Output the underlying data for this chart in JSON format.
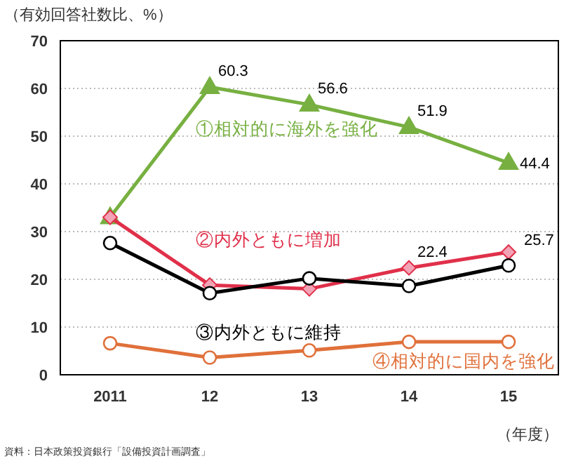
{
  "chart_data": {
    "type": "line",
    "ylabel": "（有効回答社数比、%）",
    "xlabel": "（年度）",
    "categories": [
      "2011",
      "12",
      "13",
      "14",
      "15"
    ],
    "ylim": [
      0,
      70
    ],
    "yticks": [
      0,
      10,
      20,
      30,
      40,
      50,
      60,
      70
    ],
    "grid": "y",
    "annotations": [
      "資料：日本政策投資銀行「設備投資計画調査」"
    ],
    "series": [
      {
        "name": "①相対的に海外を強化",
        "color": "#77b041",
        "marker": "triangle",
        "values": [
          33.0,
          60.3,
          56.6,
          51.9,
          44.4
        ],
        "value_labels": [
          null,
          "60.3",
          "56.6",
          "51.9",
          "44.4"
        ]
      },
      {
        "name": "②内外ともに増加",
        "color": "#e0304a",
        "marker": "diamond",
        "values": [
          33.0,
          18.8,
          18.0,
          22.4,
          25.7
        ],
        "value_labels": [
          null,
          null,
          null,
          "22.4",
          "25.7"
        ]
      },
      {
        "name": "③内外ともに維持",
        "color": "#000000",
        "marker": "circle",
        "values": [
          27.6,
          17.1,
          20.2,
          18.6,
          22.9
        ]
      },
      {
        "name": "④相対的に国内を強化",
        "color": "#e0703a",
        "marker": "circle",
        "values": [
          6.6,
          3.6,
          5.1,
          6.9,
          6.9
        ]
      }
    ]
  }
}
